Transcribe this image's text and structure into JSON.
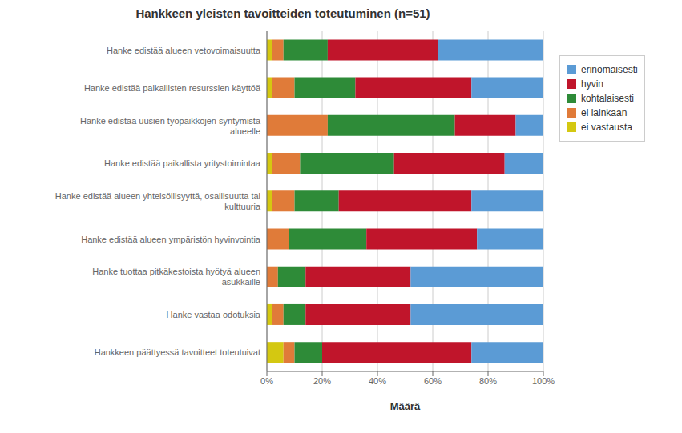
{
  "chart_data": {
    "type": "bar",
    "orientation": "horizontal",
    "stacked": true,
    "title": "Hankkeen yleisten tavoitteiden toteutuminen (n=51)",
    "xlabel": "Määrä",
    "categories": [
      "Hanke edistää alueen vetovoimaisuutta",
      "Hanke edistää paikallisten resurssien käyttöä",
      "Hanke edistää uusien työpaikkojen syntymistä\nalueelle",
      "Hanke edistää paikallista yritystoimintaa",
      "Hanke edistää alueen yhteisöllisyyttä, osallisuutta tai\nkulttuuria",
      "Hanke edistää alueen ympäristön hyvinvointia",
      "Hanke tuottaa pitkäkestoista hyötyä alueen\nasukkaille",
      "Hanke vastaa odotuksia",
      "Hankkeen päättyessä tavoitteet toteutuivat"
    ],
    "series": [
      {
        "name": "ei vastausta",
        "color": "#D4C811",
        "values": [
          2,
          2,
          0,
          2,
          2,
          0,
          0,
          2,
          6
        ]
      },
      {
        "name": "ei lainkaan",
        "color": "#E07B39",
        "values": [
          4,
          8,
          22,
          10,
          8,
          8,
          4,
          4,
          4
        ]
      },
      {
        "name": "kohtalaisesti",
        "color": "#2E8B38",
        "values": [
          16,
          22,
          46,
          34,
          16,
          28,
          10,
          8,
          10
        ]
      },
      {
        "name": "hyvin",
        "color": "#C0152B",
        "values": [
          40,
          42,
          22,
          40,
          48,
          40,
          38,
          38,
          54
        ]
      },
      {
        "name": "erinomaisesti",
        "color": "#5B9BD5",
        "values": [
          38,
          26,
          10,
          14,
          26,
          24,
          48,
          48,
          26
        ]
      }
    ],
    "xlim": [
      0,
      100
    ],
    "xticks": [
      {
        "value": 0,
        "label": "0%"
      },
      {
        "value": 20,
        "label": "20%"
      },
      {
        "value": 40,
        "label": "40%"
      },
      {
        "value": 60,
        "label": "60%"
      },
      {
        "value": 80,
        "label": "80%"
      },
      {
        "value": 100,
        "label": "100%"
      }
    ],
    "grid": true,
    "legend": "right"
  }
}
